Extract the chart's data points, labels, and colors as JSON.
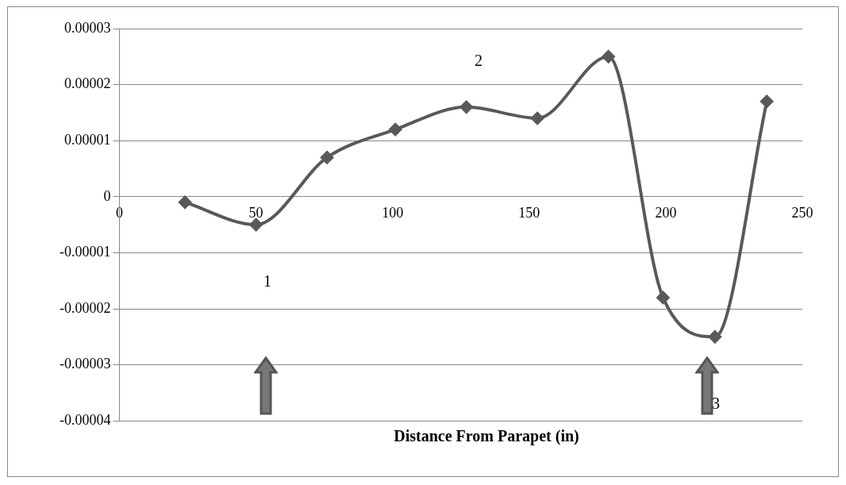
{
  "chart_data": {
    "type": "line",
    "xlabel": "Distance From Parapet (in)",
    "x": [
      24,
      50,
      76,
      101,
      127,
      153,
      179,
      199,
      218,
      237
    ],
    "series": [
      {
        "color": "#595959",
        "values": [
          -1e-06,
          -5e-06,
          7e-06,
          1.2e-05,
          1.6e-05,
          1.4e-05,
          2.5e-05,
          -1.8e-05,
          -2.5e-05,
          1.7e-05
        ]
      }
    ],
    "xlim": [
      0,
      250
    ],
    "xticks": [
      0,
      50,
      100,
      150,
      200,
      250
    ],
    "ylim": [
      -4e-05,
      3e-05
    ],
    "yticks": [
      {
        "value": -4e-05,
        "label": "-0.00004"
      },
      {
        "value": -3e-05,
        "label": "-0.00003"
      },
      {
        "value": -2e-05,
        "label": "-0.00002"
      },
      {
        "value": -1e-05,
        "label": "-0.00001"
      },
      {
        "value": 0,
        "label": "0"
      },
      {
        "value": 1e-05,
        "label": "0.00001"
      },
      {
        "value": 2e-05,
        "label": "0.00002"
      },
      {
        "value": 3e-05,
        "label": "0.00003"
      }
    ],
    "grid": "y",
    "marker": "diamond",
    "line_style": "solid",
    "legend": false,
    "annotations": [
      "1",
      "2",
      "3"
    ]
  }
}
